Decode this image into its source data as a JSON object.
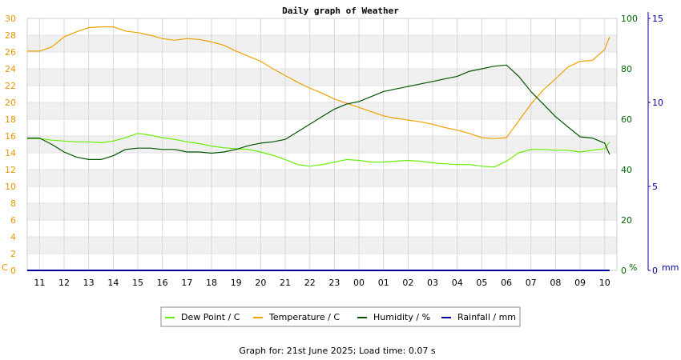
{
  "chart_data": {
    "type": "line",
    "title": "Daily graph of Weather",
    "x_ticks": [
      "11",
      "12",
      "13",
      "14",
      "15",
      "16",
      "17",
      "18",
      "19",
      "20",
      "21",
      "22",
      "23",
      "00",
      "01",
      "02",
      "03",
      "04",
      "05",
      "06",
      "07",
      "08",
      "09",
      "10"
    ],
    "axes": {
      "left": {
        "unit": "C",
        "range": [
          0,
          30
        ],
        "ticks": [
          0,
          2,
          4,
          6,
          8,
          10,
          12,
          14,
          16,
          18,
          20,
          22,
          24,
          26,
          28,
          30
        ],
        "color": "#e69500"
      },
      "right1": {
        "unit": "%",
        "range": [
          0,
          100
        ],
        "ticks": [
          0,
          20,
          40,
          60,
          80,
          100
        ],
        "color": "#006400"
      },
      "right2": {
        "unit": "mm",
        "range": [
          0,
          15
        ],
        "ticks": [
          0,
          5,
          10,
          15
        ],
        "color": "#0000a0"
      }
    },
    "grid": true,
    "legend_position": "bottom",
    "colors": {
      "dew_point": "#66ee00",
      "temperature": "#f0a000",
      "humidity": "#005500",
      "rainfall": "#0000a0"
    },
    "series": [
      {
        "name": "Dew Point / C",
        "axis": "left",
        "color": "#66ee00",
        "x": [
          10.5,
          11,
          11.5,
          12,
          12.5,
          13,
          13.5,
          14,
          14.5,
          15,
          15.5,
          16,
          16.5,
          17,
          17.5,
          18,
          18.5,
          19,
          19.5,
          20,
          20.5,
          21,
          21.5,
          22,
          22.5,
          23,
          23.5,
          24,
          24.5,
          25,
          25.5,
          26,
          26.5,
          27,
          27.5,
          28,
          28.5,
          29,
          29.5,
          30,
          30.5,
          31,
          31.5,
          32,
          32.5,
          33,
          33.5,
          34,
          34.2
        ],
        "y": [
          15.7,
          15.7,
          15.5,
          15.4,
          15.3,
          15.3,
          15.2,
          15.4,
          15.8,
          16.3,
          16.1,
          15.8,
          15.6,
          15.3,
          15.1,
          14.8,
          14.6,
          14.5,
          14.4,
          14.1,
          13.7,
          13.2,
          12.6,
          12.4,
          12.6,
          12.9,
          13.2,
          13.1,
          12.9,
          12.9,
          13.0,
          13.1,
          13.0,
          12.8,
          12.7,
          12.6,
          12.6,
          12.4,
          12.3,
          13.0,
          14.0,
          14.4,
          14.4,
          14.3,
          14.3,
          14.1,
          14.3,
          14.5,
          15.3
        ]
      },
      {
        "name": "Temperature / C",
        "axis": "left",
        "color": "#f0a000",
        "x": [
          10.5,
          11,
          11.5,
          12,
          12.5,
          13,
          13.5,
          14,
          14.5,
          15,
          15.5,
          16,
          16.5,
          17,
          17.5,
          18,
          18.5,
          19,
          19.5,
          20,
          20.5,
          21,
          21.5,
          22,
          22.5,
          23,
          23.5,
          24,
          24.5,
          25,
          25.5,
          26,
          26.5,
          27,
          27.5,
          28,
          28.5,
          29,
          29.5,
          30,
          30.5,
          31,
          31.5,
          32,
          32.5,
          33,
          33.5,
          34,
          34.2
        ],
        "y": [
          26.1,
          26.1,
          26.6,
          27.8,
          28.4,
          28.9,
          29.0,
          29.0,
          28.5,
          28.3,
          28.0,
          27.6,
          27.4,
          27.6,
          27.5,
          27.2,
          26.8,
          26.1,
          25.5,
          24.9,
          24.0,
          23.2,
          22.4,
          21.7,
          21.1,
          20.4,
          19.9,
          19.4,
          18.9,
          18.4,
          18.1,
          17.9,
          17.7,
          17.4,
          17.0,
          16.7,
          16.3,
          15.8,
          15.7,
          15.8,
          17.8,
          19.8,
          21.5,
          22.8,
          24.2,
          24.9,
          25.0,
          26.3,
          27.8
        ]
      },
      {
        "name": "Humidity / %",
        "axis": "right1",
        "color": "#005500",
        "x": [
          10.5,
          11,
          11.5,
          12,
          12.5,
          13,
          13.5,
          14,
          14.5,
          15,
          15.5,
          16,
          16.5,
          17,
          17.5,
          18,
          18.5,
          19,
          19.5,
          20,
          20.5,
          21,
          21.5,
          22,
          22.5,
          23,
          23.5,
          24,
          24.5,
          25,
          25.5,
          26,
          26.5,
          27,
          27.5,
          28,
          28.5,
          29,
          29.5,
          30,
          30.5,
          31,
          31.5,
          32,
          32.5,
          33,
          33.5,
          34,
          34.2
        ],
        "y": [
          52.5,
          52.5,
          50.0,
          47.0,
          45.0,
          44.0,
          44.0,
          45.5,
          48.0,
          48.5,
          48.5,
          48.0,
          48.0,
          47.0,
          47.0,
          46.5,
          47.0,
          48.0,
          49.5,
          50.5,
          51.0,
          52.0,
          55.0,
          58.0,
          61.0,
          64.0,
          66.0,
          67.0,
          69.0,
          71.0,
          72.0,
          73.0,
          74.0,
          75.0,
          76.0,
          77.0,
          79.0,
          80.0,
          81.0,
          81.5,
          77.0,
          71.0,
          66.0,
          61.0,
          57.0,
          53.0,
          52.5,
          50.5,
          46.0
        ]
      },
      {
        "name": "Rainfall / mm",
        "axis": "right2",
        "color": "#0000a0",
        "x": [
          10.5,
          34.2
        ],
        "y": [
          0,
          0
        ]
      }
    ]
  },
  "footer": "Graph for:  21st June 2025; Load time: 0.07 s"
}
